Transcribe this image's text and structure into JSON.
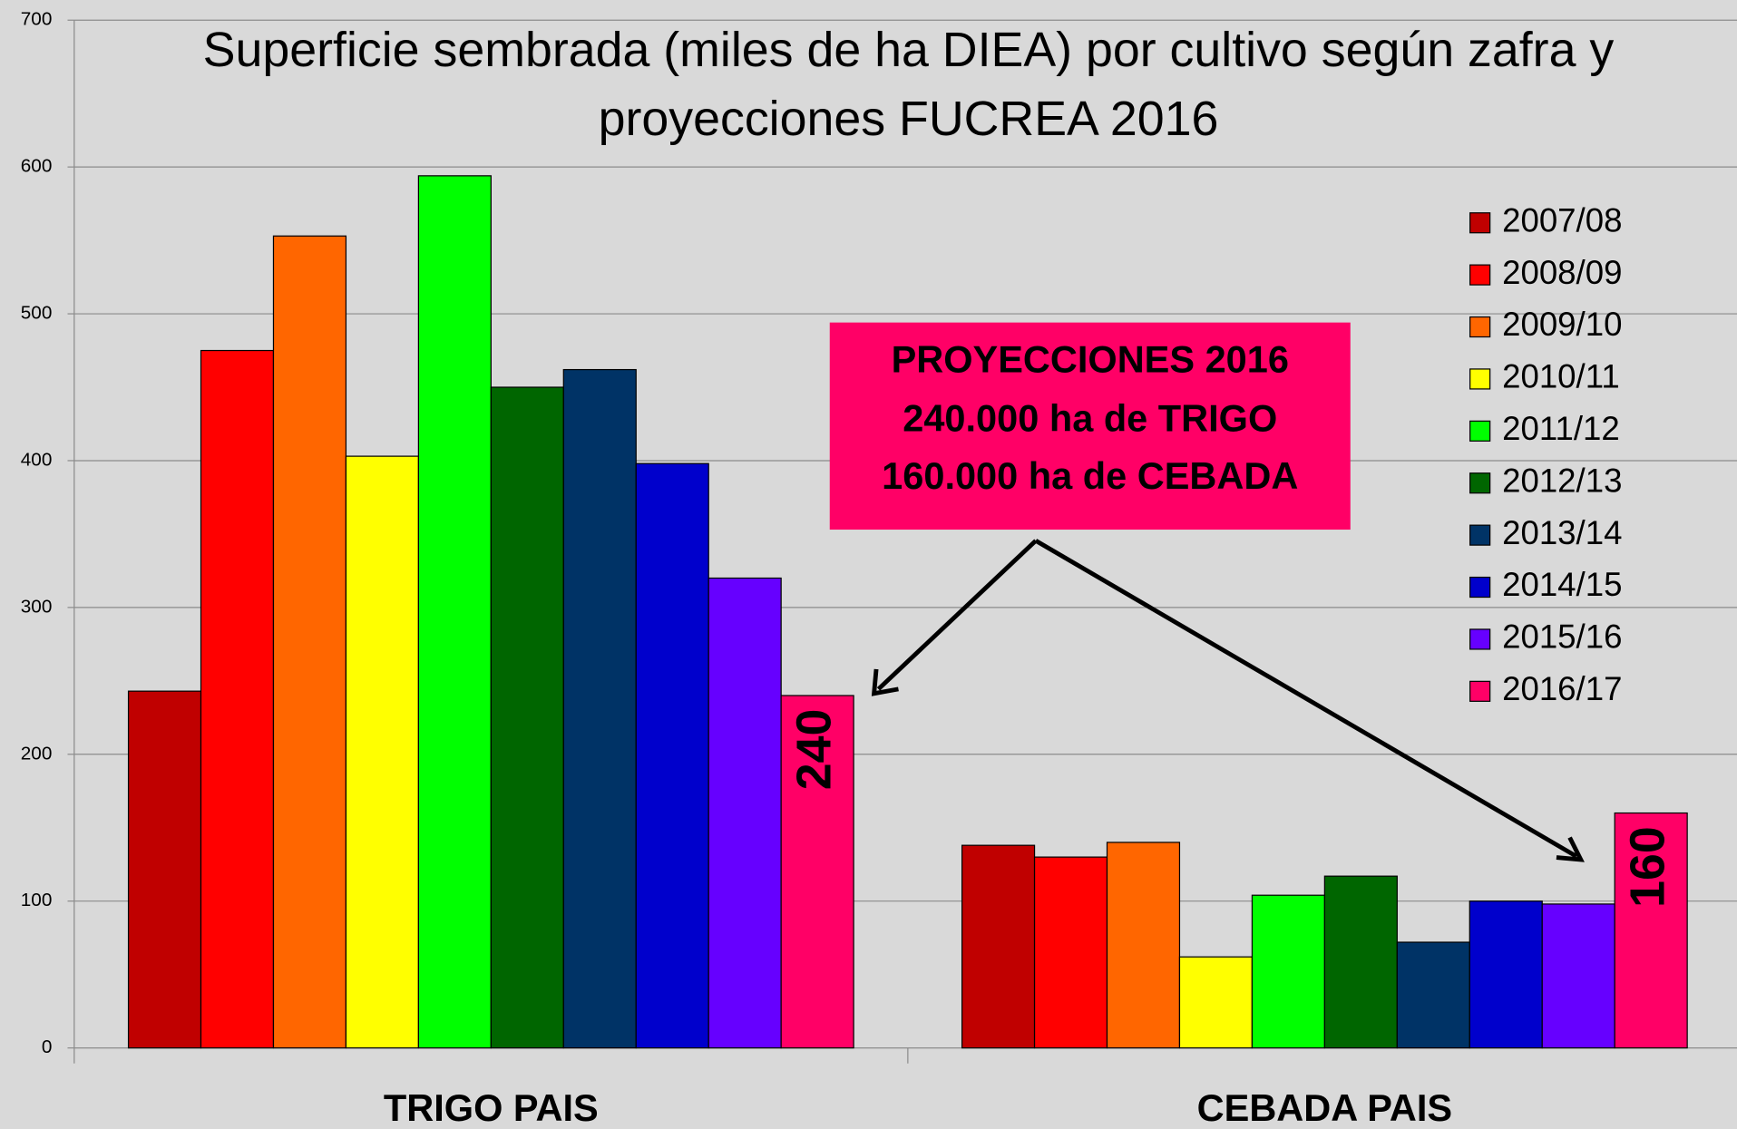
{
  "chart_data": {
    "type": "bar",
    "title": [
      "Superficie sembrada (miles de ha DIEA) por cultivo según zafra y",
      "proyecciones FUCREA 2016"
    ],
    "categories": [
      "TRIGO PAIS",
      "CEBADA PAIS"
    ],
    "series": [
      {
        "name": "2007/08",
        "color": "#c00000",
        "values": [
          243,
          138
        ]
      },
      {
        "name": "2008/09",
        "color": "#ff0000",
        "values": [
          475,
          130
        ]
      },
      {
        "name": "2009/10",
        "color": "#ff6600",
        "values": [
          553,
          140
        ]
      },
      {
        "name": "2010/11",
        "color": "#ffff00",
        "values": [
          403,
          62
        ]
      },
      {
        "name": "2011/12",
        "color": "#00ff00",
        "values": [
          594,
          104
        ]
      },
      {
        "name": "2012/13",
        "color": "#006600",
        "values": [
          450,
          117
        ]
      },
      {
        "name": "2013/14",
        "color": "#003366",
        "values": [
          462,
          72
        ]
      },
      {
        "name": "2014/15",
        "color": "#0000cc",
        "values": [
          398,
          100
        ]
      },
      {
        "name": "2015/16",
        "color": "#6600ff",
        "values": [
          320,
          98
        ]
      },
      {
        "name": "2016/17",
        "color": "#ff0066",
        "values": [
          240,
          160
        ],
        "show_labels": true
      }
    ],
    "ylim": [
      0,
      700
    ],
    "yticks": [
      0,
      100,
      200,
      300,
      400,
      500,
      600,
      700
    ],
    "grid": true,
    "legend": "right",
    "annotation": [
      "PROYECCIONES 2016",
      "240.000 ha de TRIGO",
      "160.000 ha de CEBADA"
    ]
  }
}
